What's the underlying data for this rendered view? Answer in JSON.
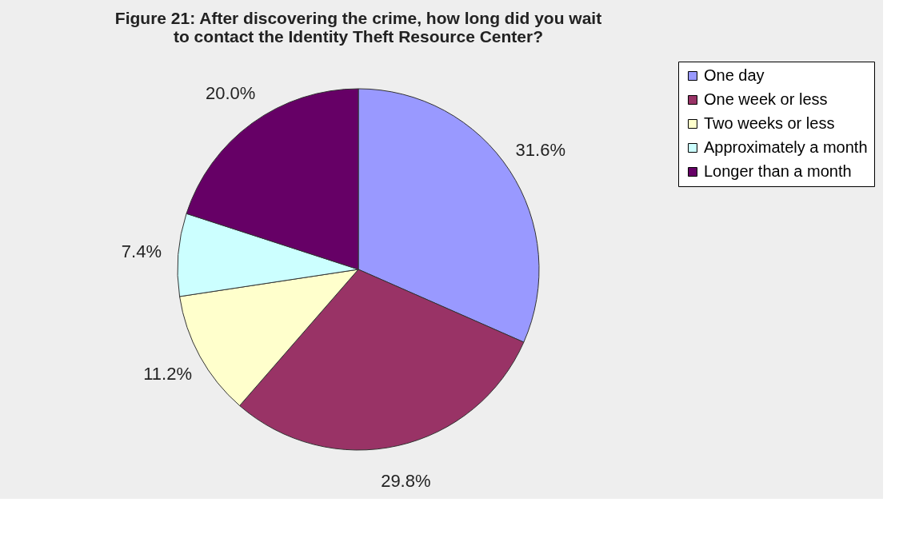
{
  "chart_data": {
    "type": "pie",
    "title": "Figure 21:  After discovering the crime, how long did you wait to contact the Identity Theft Resource Center?",
    "categories": [
      "One day",
      "One week or less",
      "Two weeks or less",
      "Approximately a month",
      "Longer than a month"
    ],
    "values": [
      31.6,
      29.8,
      11.2,
      7.4,
      20.0
    ],
    "value_labels": [
      "31.6%",
      "29.8%",
      "11.2%",
      "7.4%",
      "20.0%"
    ],
    "colors": [
      "#9999ff",
      "#993366",
      "#ffffcc",
      "#ccffff",
      "#660066"
    ],
    "legend": "right"
  }
}
